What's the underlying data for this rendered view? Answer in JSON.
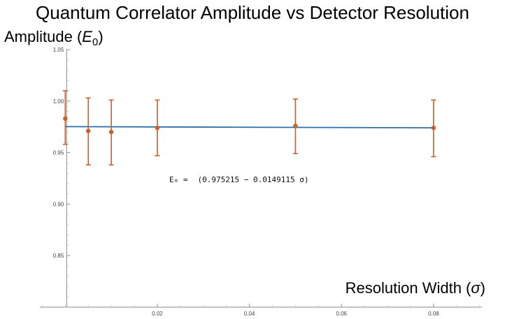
{
  "chart_data": {
    "type": "scatter",
    "title": "Quantum Correlator Amplitude vs Detector Resolution",
    "ylabel_prefix": "Amplitude (",
    "ylabel_symbol": "E",
    "ylabel_sub": "0",
    "ylabel_suffix": ")",
    "xlabel_prefix": "Resolution Width (",
    "xlabel_symbol": "σ",
    "xlabel_suffix": ")",
    "xlim": [
      -0.0005,
      0.0905
    ],
    "ylim": [
      0.8,
      1.05
    ],
    "x_ticks": [
      0.02,
      0.04,
      0.06,
      0.08
    ],
    "x_tick_labels": [
      "0.02",
      "0.04",
      "0.06",
      "0.08"
    ],
    "y_ticks": [
      0.85,
      0.9,
      0.95,
      1.0,
      1.05
    ],
    "y_tick_labels": [
      "0.85",
      "0.90",
      "0.95",
      "1.00",
      "1.05"
    ],
    "grid": false,
    "series": [
      {
        "x": [
          0.0,
          0.005,
          0.01,
          0.02,
          0.05,
          0.08
        ],
        "y": [
          0.983,
          0.971,
          0.97,
          0.974,
          0.976,
          0.974
        ],
        "yerr_low": [
          0.958,
          0.938,
          0.938,
          0.947,
          0.949,
          0.946
        ],
        "yerr_high": [
          1.01,
          1.003,
          1.001,
          1.001,
          1.002,
          1.001
        ],
        "color": "#c8602a"
      }
    ],
    "fit": {
      "intercept": 0.975215,
      "slope": -0.0149115,
      "x_range": [
        0.0,
        0.08
      ],
      "color": "#2a6fa5",
      "label_lhs": "E₀ =",
      "label_rhs": "(0.975215 − 0.0149115 σ)"
    }
  }
}
